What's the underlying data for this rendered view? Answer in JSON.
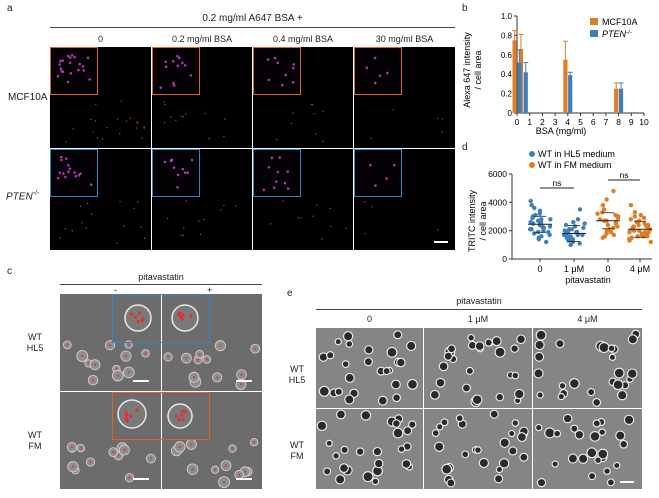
{
  "panel_a": {
    "label": "a",
    "header": "0.2 mg/ml A647 BSA +",
    "columns": [
      "0",
      "0.2 mg/ml BSA",
      "0.4 mg/ml BSA",
      "30 mg/ml BSA"
    ],
    "rows": [
      "MCF10A",
      "PTEN"
    ],
    "pten_superscript": "-/-",
    "inset_colors": {
      "MCF10A": "#e0622b",
      "PTEN": "#2f86c8"
    }
  },
  "panel_b": {
    "label": "b",
    "pten_legend_super": "-/-",
    "chart_data": {
      "type": "bar",
      "title": "",
      "xlabel": "BSA (mg/ml)",
      "ylabel": "Alexa 647 intensity / cell area",
      "ylabel_line1": "Alexa 647 intensity",
      "ylabel_line2": "/ cell area",
      "xlim": [
        0,
        10
      ],
      "ylim": [
        0,
        1.0
      ],
      "xticks": [
        "0",
        "1",
        "2",
        "3",
        "4",
        "5",
        "6",
        "7",
        "8",
        "9",
        "10"
      ],
      "yticks": [
        "0",
        "0.2",
        "0.4",
        "0.6",
        "0.8",
        "1.0"
      ],
      "legend_position": "top-right",
      "series": [
        {
          "name": "MCF10A",
          "color": "#e07c22",
          "x": [
            0,
            0.5,
            4,
            8
          ],
          "values": [
            0.75,
            0.66,
            0.55,
            0.25
          ],
          "errors": [
            0.1,
            0.15,
            0.19,
            0.06
          ]
        },
        {
          "name": "PTEN",
          "color": "#3d7fbd",
          "x": [
            0,
            0.5,
            4,
            8
          ],
          "values": [
            0.52,
            0.42,
            0.39,
            0.25
          ],
          "errors": [
            0.13,
            0.1,
            0.03,
            0.06
          ]
        }
      ]
    }
  },
  "panel_c": {
    "label": "c",
    "title": "pitavastatin",
    "minus": "-",
    "plus": "+",
    "rows": [
      {
        "line1": "WT",
        "line2": "HL5"
      },
      {
        "line1": "WT",
        "line2": "FM"
      }
    ],
    "inset_colors": [
      "#2f86c8",
      "#e0622b"
    ]
  },
  "panel_d": {
    "label": "d",
    "chart_data": {
      "type": "scatter",
      "title": "",
      "xlabel": "pitavastatin",
      "ylabel": "TRITC intensity / cell area",
      "ylabel_line1": "TRITC intensity",
      "ylabel_line2": "/ cell area",
      "ylim": [
        0,
        6000
      ],
      "yticks": [
        "0",
        "2000",
        "4000",
        "6000"
      ],
      "categories": [
        "0",
        "1 μM",
        "0",
        "4 μM"
      ],
      "legend_position": "top",
      "series": [
        {
          "name": "WT in HL5 medium",
          "color": "#3d7fbd",
          "groups": [
            0,
            1
          ],
          "values": [
            [
              3200,
              2800,
              2100,
              3600,
              1500,
              2500,
              4100,
              1900,
              2300,
              2700,
              3100,
              1200,
              2000,
              2600,
              3400,
              1800,
              2200,
              2900,
              1600,
              2400,
              3000,
              2100,
              1700,
              2800,
              3800,
              1400,
              2300,
              2500,
              1900,
              2600
            ],
            [
              1700,
              2100,
              1500,
              2500,
              1200,
              1900,
              2300,
              1400,
              1800,
              3500,
              1000,
              1600,
              2000,
              2200,
              1300,
              1700,
              2600,
              1500,
              1900,
              2100,
              1100,
              1800,
              2400,
              1600,
              1400,
              2000,
              1700,
              1300,
              2800,
              1900
            ]
          ],
          "means": [
            2450,
            1800
          ]
        },
        {
          "name": "WT in FM medium",
          "color": "#e07c22",
          "groups": [
            2,
            3
          ],
          "values": [
            [
              2900,
              3500,
              1800,
              2400,
              4200,
              3100,
              2000,
              2700,
              1500,
              3300,
              2200,
              2800,
              3800,
              1700,
              2500,
              3000,
              2300,
              2600,
              4800,
              1900,
              2100,
              3200,
              2700,
              1600
            ],
            [
              2300,
              1600,
              2900,
              1900,
              3300,
              2100,
              1400,
              2600,
              1800,
              2400,
              3800,
              1200,
              2000,
              2200,
              1700,
              2700,
              1500,
              2300,
              1900,
              3000,
              1300,
              2100,
              2500,
              1800,
              1600,
              2400,
              2000,
              1700,
              2200,
              1400,
              2800,
              1900,
              3100,
              1600,
              2300
            ]
          ],
          "means": [
            2700,
            2100
          ]
        }
      ],
      "annotations": [
        "ns",
        "ns"
      ]
    }
  },
  "panel_e": {
    "label": "e",
    "title": "pitavastatin",
    "columns": [
      "0",
      "1 μM",
      "4 μM"
    ],
    "rows": [
      {
        "line1": "WT",
        "line2": "HL5"
      },
      {
        "line1": "WT",
        "line2": "FM"
      }
    ]
  }
}
